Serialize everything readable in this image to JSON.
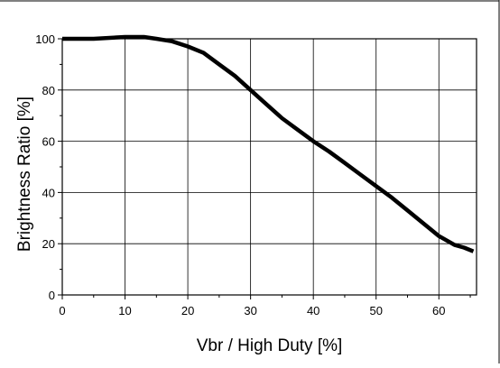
{
  "chart_data": {
    "type": "line",
    "title": "",
    "xlabel": "Vbr / High Duty [%]",
    "ylabel": "Brightness Ratio [%]",
    "xlim": [
      0,
      66
    ],
    "ylim": [
      0,
      100
    ],
    "x_ticks": [
      0,
      10,
      20,
      30,
      40,
      50,
      60
    ],
    "y_ticks": [
      0,
      20,
      40,
      60,
      80,
      100
    ],
    "x_tick_labels": [
      "0",
      "10",
      "20",
      "30",
      "40",
      "50",
      "60"
    ],
    "y_tick_labels": [
      "0",
      "20",
      "40",
      "60",
      "80",
      "100"
    ],
    "grid": true,
    "legend": "none",
    "series": [
      {
        "color": "#000000",
        "x": [
          0,
          5,
          10,
          13,
          15,
          17.5,
          20,
          22.5,
          25,
          27.5,
          30,
          32.5,
          35,
          37.5,
          40,
          42.5,
          45,
          47.5,
          50,
          52.5,
          55,
          57.5,
          60,
          62.5,
          64,
          65.5
        ],
        "y": [
          100,
          100,
          100.7,
          100.7,
          100,
          99,
          97,
          94.5,
          90,
          85.5,
          80,
          74.5,
          69,
          64.5,
          60,
          56,
          51.5,
          47,
          42.5,
          38,
          33,
          28,
          23,
          19.5,
          18.5,
          17
        ]
      }
    ]
  }
}
